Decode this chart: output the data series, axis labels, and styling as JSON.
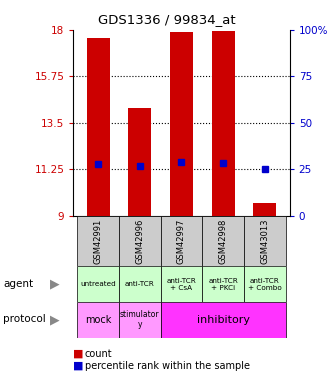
{
  "title": "GDS1336 / 99834_at",
  "samples": [
    "GSM42991",
    "GSM42996",
    "GSM42997",
    "GSM42998",
    "GSM43013"
  ],
  "bar_values": [
    17.6,
    14.2,
    17.9,
    17.95,
    9.6
  ],
  "bar_bottom": 9.0,
  "percentile_values": [
    11.5,
    11.4,
    11.62,
    11.55,
    11.25
  ],
  "ylim": [
    9,
    18
  ],
  "yticks_left": [
    9,
    11.25,
    13.5,
    15.75,
    18
  ],
  "yticks_right": [
    0,
    25,
    50,
    75,
    100
  ],
  "bar_color": "#cc0000",
  "percentile_color": "#0000cc",
  "agent_labels": [
    "untreated",
    "anti-TCR",
    "anti-TCR\n+ CsA",
    "anti-TCR\n+ PKCi",
    "anti-TCR\n+ Combo"
  ],
  "agent_color": "#ccffcc",
  "sample_bg_color": "#cccccc",
  "protocol_mock_color": "#ff99ff",
  "protocol_stim_color": "#ff99ff",
  "protocol_inhib_color": "#ff33ff",
  "legend_count_color": "#cc0000",
  "legend_pct_color": "#0000cc",
  "left_axis_color": "#cc0000",
  "right_axis_color": "#0000cc"
}
